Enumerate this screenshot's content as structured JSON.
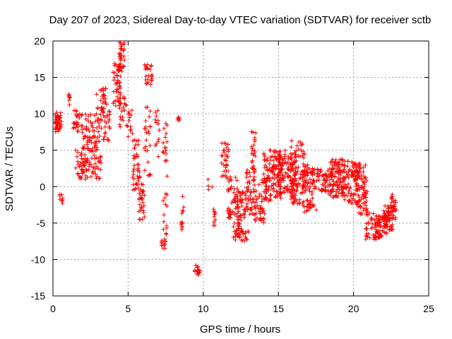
{
  "chart_data": {
    "type": "scatter",
    "title": "Day 207 of 2023, Sidereal Day-to-day VTEC variation (SDTVAR) for receiver sctb",
    "xlabel": "GPS time / hours",
    "ylabel": "SDTVAR / TECUs",
    "xlim": [
      0,
      25
    ],
    "ylim": [
      -15,
      20
    ],
    "xticks": [
      0,
      5,
      10,
      15,
      20,
      25
    ],
    "yticks": [
      -15,
      -10,
      -5,
      0,
      5,
      10,
      15,
      20
    ],
    "grid": true,
    "marker": "+",
    "color": "#ff0000",
    "series": [
      {
        "name": "sctb",
        "clusters": [
          {
            "x0": 0.1,
            "x1": 0.6,
            "ymin": 7.5,
            "ymax": 10.3,
            "n": 40
          },
          {
            "x0": 0.45,
            "x1": 0.65,
            "ymin": -2.5,
            "ymax": -1.0,
            "n": 8
          },
          {
            "x0": 0.95,
            "x1": 1.15,
            "ymin": 11.0,
            "ymax": 12.8,
            "n": 8
          },
          {
            "x0": 1.35,
            "x1": 1.7,
            "ymin": 8.0,
            "ymax": 10.5,
            "n": 14
          },
          {
            "x0": 1.5,
            "x1": 3.2,
            "ymin": 1.0,
            "ymax": 10.0,
            "n": 160
          },
          {
            "x0": 2.8,
            "x1": 3.6,
            "ymin": 9.0,
            "ymax": 13.5,
            "n": 30
          },
          {
            "x0": 3.2,
            "x1": 3.8,
            "ymin": 6.0,
            "ymax": 11.5,
            "n": 25
          },
          {
            "x0": 4.0,
            "x1": 4.5,
            "ymin": 11.0,
            "ymax": 17.0,
            "n": 50
          },
          {
            "x0": 4.4,
            "x1": 4.8,
            "ymin": 15.5,
            "ymax": 19.8,
            "n": 30
          },
          {
            "x0": 4.4,
            "x1": 5.0,
            "ymin": 8.0,
            "ymax": 12.5,
            "n": 20
          },
          {
            "x0": 5.0,
            "x1": 5.3,
            "ymin": 6.5,
            "ymax": 10.5,
            "n": 12
          },
          {
            "x0": 5.3,
            "x1": 5.8,
            "ymin": -0.5,
            "ymax": 6.5,
            "n": 40
          },
          {
            "x0": 5.7,
            "x1": 6.1,
            "ymin": -4.5,
            "ymax": 0.5,
            "n": 30
          },
          {
            "x0": 6.1,
            "x1": 6.6,
            "ymin": 14.0,
            "ymax": 17.0,
            "n": 25
          },
          {
            "x0": 6.0,
            "x1": 6.5,
            "ymin": 1.0,
            "ymax": 12.0,
            "n": 25
          },
          {
            "x0": 6.8,
            "x1": 7.1,
            "ymin": 4.0,
            "ymax": 10.5,
            "n": 14
          },
          {
            "x0": 7.2,
            "x1": 7.5,
            "ymin": -8.5,
            "ymax": -7.2,
            "n": 12
          },
          {
            "x0": 7.3,
            "x1": 7.6,
            "ymin": -7.0,
            "ymax": 10.0,
            "n": 30
          },
          {
            "x0": 8.3,
            "x1": 8.5,
            "ymin": 8.5,
            "ymax": 10.0,
            "n": 5
          },
          {
            "x0": 8.5,
            "x1": 8.7,
            "ymin": -6.0,
            "ymax": -0.5,
            "n": 12
          },
          {
            "x0": 9.4,
            "x1": 9.8,
            "ymin": -12.3,
            "ymax": -10.7,
            "n": 14
          },
          {
            "x0": 10.3,
            "x1": 10.6,
            "ymin": -0.5,
            "ymax": 1.0,
            "n": 4
          },
          {
            "x0": 10.6,
            "x1": 10.9,
            "ymin": -5.5,
            "ymax": -3.0,
            "n": 10
          },
          {
            "x0": 11.2,
            "x1": 11.7,
            "ymin": 1.0,
            "ymax": 6.0,
            "n": 30
          },
          {
            "x0": 11.6,
            "x1": 12.3,
            "ymin": -4.5,
            "ymax": 1.5,
            "n": 40
          },
          {
            "x0": 12.0,
            "x1": 13.0,
            "ymin": -7.5,
            "ymax": -0.5,
            "n": 90
          },
          {
            "x0": 12.8,
            "x1": 13.4,
            "ymin": -4.0,
            "ymax": 2.5,
            "n": 45
          },
          {
            "x0": 13.2,
            "x1": 13.6,
            "ymin": 2.0,
            "ymax": 8.5,
            "n": 22
          },
          {
            "x0": 13.4,
            "x1": 14.2,
            "ymin": -5.0,
            "ymax": 1.0,
            "n": 50
          },
          {
            "x0": 14.0,
            "x1": 15.2,
            "ymin": -2.0,
            "ymax": 5.0,
            "n": 120
          },
          {
            "x0": 15.0,
            "x1": 16.2,
            "ymin": -1.0,
            "ymax": 5.0,
            "n": 110
          },
          {
            "x0": 15.8,
            "x1": 16.8,
            "ymin": -2.5,
            "ymax": 6.3,
            "n": 90
          },
          {
            "x0": 16.6,
            "x1": 17.6,
            "ymin": -3.5,
            "ymax": 3.0,
            "n": 80
          },
          {
            "x0": 17.5,
            "x1": 18.5,
            "ymin": -1.0,
            "ymax": 2.5,
            "n": 50
          },
          {
            "x0": 18.4,
            "x1": 19.4,
            "ymin": -1.5,
            "ymax": 3.8,
            "n": 100
          },
          {
            "x0": 19.3,
            "x1": 20.4,
            "ymin": -2.5,
            "ymax": 3.5,
            "n": 100
          },
          {
            "x0": 20.2,
            "x1": 21.0,
            "ymin": -4.0,
            "ymax": 3.0,
            "n": 60
          },
          {
            "x0": 20.8,
            "x1": 21.5,
            "ymin": -7.5,
            "ymax": -3.0,
            "n": 30
          },
          {
            "x0": 21.4,
            "x1": 22.2,
            "ymin": -7.3,
            "ymax": -4.0,
            "n": 60
          },
          {
            "x0": 22.0,
            "x1": 22.6,
            "ymin": -6.5,
            "ymax": -2.5,
            "n": 50
          },
          {
            "x0": 22.5,
            "x1": 22.85,
            "ymin": -4.5,
            "ymax": -1.0,
            "n": 30
          }
        ]
      }
    ]
  }
}
